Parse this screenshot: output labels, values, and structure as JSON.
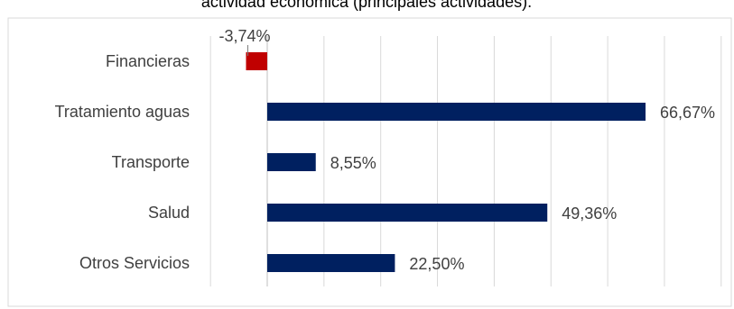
{
  "chart_data": {
    "type": "bar",
    "orientation": "horizontal",
    "title": "actividad económica (principales actividades).",
    "categories": [
      "Financieras",
      "Tratamiento aguas",
      "Transporte",
      "Salud",
      "Otros Servicios"
    ],
    "values": [
      -3.74,
      66.67,
      8.55,
      49.36,
      22.5
    ],
    "data_labels": [
      "-3,74%",
      "66,67%",
      "8,55%",
      "49,36%",
      "22,50%"
    ],
    "xlim": [
      -10,
      80
    ],
    "grid": true,
    "legend": "none"
  },
  "colors": {
    "positive": "#002060",
    "negative": "#c00000",
    "grid": "#d9d9d9",
    "border": "#d9d9d9",
    "text": "#404040"
  }
}
